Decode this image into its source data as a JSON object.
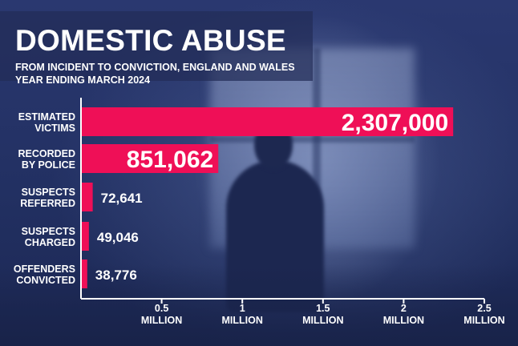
{
  "header": {
    "title": "DOMESTIC ABUSE",
    "subtitle_line1": "FROM INCIDENT TO CONVICTION, ENGLAND AND WALES",
    "subtitle_line2": "YEAR ENDING MARCH 2024"
  },
  "colors": {
    "bar": "#ef0f57",
    "text": "#ffffff",
    "axis": "#ffffff",
    "background": "#233064"
  },
  "chart_data": {
    "type": "bar",
    "orientation": "horizontal",
    "title": "DOMESTIC ABUSE",
    "subtitle": "FROM INCIDENT TO CONVICTION, ENGLAND AND WALES YEAR ENDING MARCH 2024",
    "categories": [
      [
        "ESTIMATED",
        "VICTIMS"
      ],
      [
        "RECORDED",
        "BY POLICE"
      ],
      [
        "SUSPECTS",
        "REFERRED"
      ],
      [
        "SUSPECTS",
        "CHARGED"
      ],
      [
        "OFFENDERS",
        "CONVICTED"
      ]
    ],
    "values": [
      2307000,
      851062,
      72641,
      49046,
      38776
    ],
    "value_labels": [
      "2,307,000",
      "851,062",
      "72,641",
      "49,046",
      "38,776"
    ],
    "xlim": [
      0,
      2500000
    ],
    "xticks": [
      {
        "value": 500000,
        "label": [
          "0.5",
          "MILLION"
        ]
      },
      {
        "value": 1000000,
        "label": [
          "1",
          "MILLION"
        ]
      },
      {
        "value": 1500000,
        "label": [
          "1.5",
          "MILLION"
        ]
      },
      {
        "value": 2000000,
        "label": [
          "2",
          "MILLION"
        ]
      },
      {
        "value": 2500000,
        "label": [
          "2.5",
          "MILLION"
        ]
      }
    ],
    "grid": false,
    "legend": "none"
  }
}
